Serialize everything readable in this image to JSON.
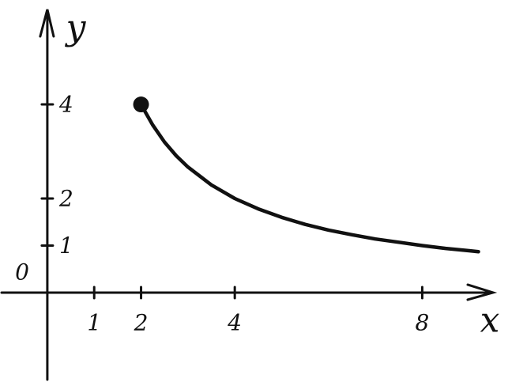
{
  "chart_data": {
    "type": "line",
    "x_label": "x",
    "y_label": "y",
    "origin_label": "0",
    "x": [
      2,
      2.25,
      2.5,
      2.75,
      3,
      3.5,
      4,
      4.5,
      5,
      5.5,
      6,
      6.5,
      7,
      7.5,
      8,
      8.5,
      9,
      9.2
    ],
    "values": [
      4,
      3.56,
      3.2,
      2.91,
      2.67,
      2.29,
      2,
      1.78,
      1.6,
      1.45,
      1.33,
      1.23,
      1.14,
      1.07,
      1,
      0.94,
      0.89,
      0.87
    ],
    "color": "#111111",
    "start_marker": true,
    "xlim": [
      -1.01,
      9.83
    ],
    "ylim": [
      -1.9,
      6.22
    ],
    "xticks": [
      1,
      2,
      4,
      8
    ],
    "yticks": [
      1,
      2,
      4
    ]
  }
}
